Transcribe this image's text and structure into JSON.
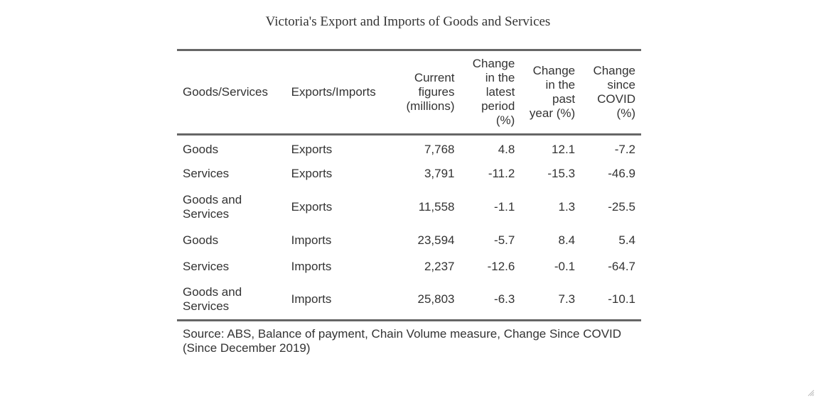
{
  "chart_data": {
    "type": "table",
    "title": "Victoria's Export and Imports of Goods and Services",
    "columns": [
      "Goods/Services",
      "Exports/Imports",
      "Current figures (millions)",
      "Change in the latest period (%)",
      "Change in the past year (%)",
      "Change since COVID (%)"
    ],
    "rows": [
      [
        "Goods",
        "Exports",
        "7,768",
        "4.8",
        "12.1",
        "-7.2"
      ],
      [
        "Services",
        "Exports",
        "3,791",
        "-11.2",
        "-15.3",
        "-46.9"
      ],
      [
        "Goods and Services",
        "Exports",
        "11,558",
        "-1.1",
        "1.3",
        "-25.5"
      ],
      [
        "Goods",
        "Imports",
        "23,594",
        "-5.7",
        "8.4",
        "5.4"
      ],
      [
        "Services",
        "Imports",
        "2,237",
        "-12.6",
        "-0.1",
        "-64.7"
      ],
      [
        "Goods and Services",
        "Imports",
        "25,803",
        "-6.3",
        "7.3",
        "-10.1"
      ]
    ],
    "source": "Source: ABS, Balance of payment, Chain Volume measure, Change Since COVID (Since December 2019)"
  },
  "icons": {
    "resize": "resize-handle-icon"
  }
}
